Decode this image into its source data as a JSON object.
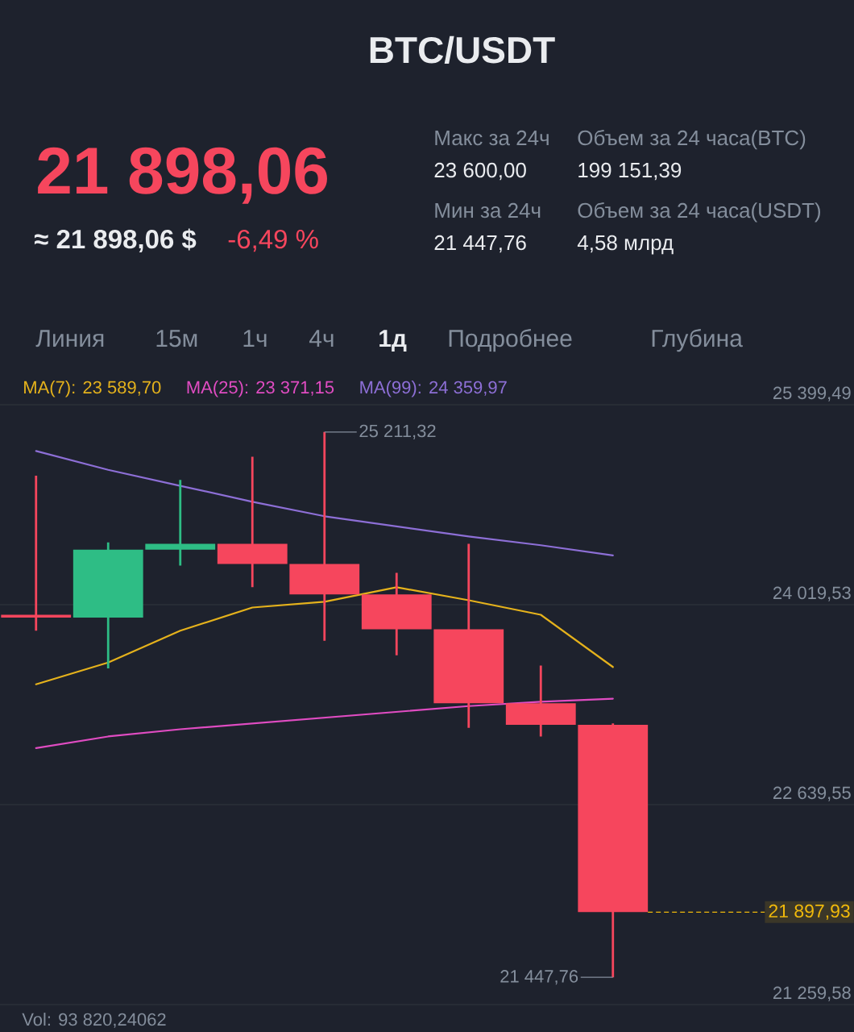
{
  "chart_data": {
    "type": "candlestick",
    "title": "BTC/USDT",
    "categories": [
      null,
      null,
      null,
      null,
      null,
      null,
      null,
      null,
      null
    ],
    "ohlc": [
      [
        23950,
        24910,
        23840,
        23930
      ],
      [
        23930,
        24450,
        23580,
        24400
      ],
      [
        24400,
        24880,
        24290,
        24440
      ],
      [
        24440,
        25040,
        24140,
        24300
      ],
      [
        24300,
        25211.32,
        23770,
        24090
      ],
      [
        24090,
        24240,
        23670,
        23850
      ],
      [
        23850,
        24440,
        23170,
        23340
      ],
      [
        23340,
        23600,
        23110,
        23190
      ],
      [
        23190,
        23200,
        21447.76,
        21897.93
      ]
    ],
    "colors": [
      "#f6465d",
      "#2ebd85",
      "#2ebd85",
      "#f6465d",
      "#f6465d",
      "#f6465d",
      "#f6465d",
      "#f6465d",
      "#f6465d"
    ],
    "series": [
      {
        "name": "MA(7): 23 589,70",
        "type": "line",
        "color": "#e5b21c",
        "values": [
          23470,
          23620,
          23840,
          24000,
          24040,
          24140,
          24050,
          23950,
          23589.7
        ]
      },
      {
        "name": "MA(25): 23 371,15",
        "type": "line",
        "color": "#e04cc2",
        "values": [
          23030,
          23110,
          23160,
          23200,
          23240,
          23280,
          23320,
          23350,
          23371.15
        ]
      },
      {
        "name": "MA(99): 24 359,97",
        "type": "line",
        "color": "#8d6fd6",
        "values": [
          25080,
          24950,
          24840,
          24730,
          24630,
          24560,
          24490,
          24430,
          24359.97
        ]
      }
    ],
    "ylim": [
      21259.58,
      25399.49
    ],
    "yticks": [
      {
        "value": 21259.58,
        "label": "21 259,58"
      },
      {
        "value": 22639.55,
        "label": "22 639,55"
      },
      {
        "value": 24019.53,
        "label": "24 019,53"
      },
      {
        "value": 25399.49,
        "label": "25 399,49"
      }
    ],
    "grid": "y",
    "legend": "top",
    "tick_labels": "y",
    "ref_lines": [
      {
        "axis": "y",
        "value": 21897.93,
        "label": "21 897,93",
        "color": "#f0b90b",
        "line_style": "dashed"
      }
    ],
    "annotations": [
      "21 898,06",
      "≈ 21 898,06 $",
      "-6,49 %",
      "Макс за 24ч",
      "23 600,00",
      "Объем за 24 часа(BTC)",
      "199 151,39",
      "Мин за 24ч",
      "21 447,76",
      "Объем за 24 часа(USDT)",
      "4,58 млрд",
      "Линия",
      "15м",
      "1ч",
      "4ч",
      "1д",
      "Подробнее",
      "Глубина",
      "25 211,32",
      "21 447,76",
      "Vol: 93 820,24062"
    ]
  }
}
